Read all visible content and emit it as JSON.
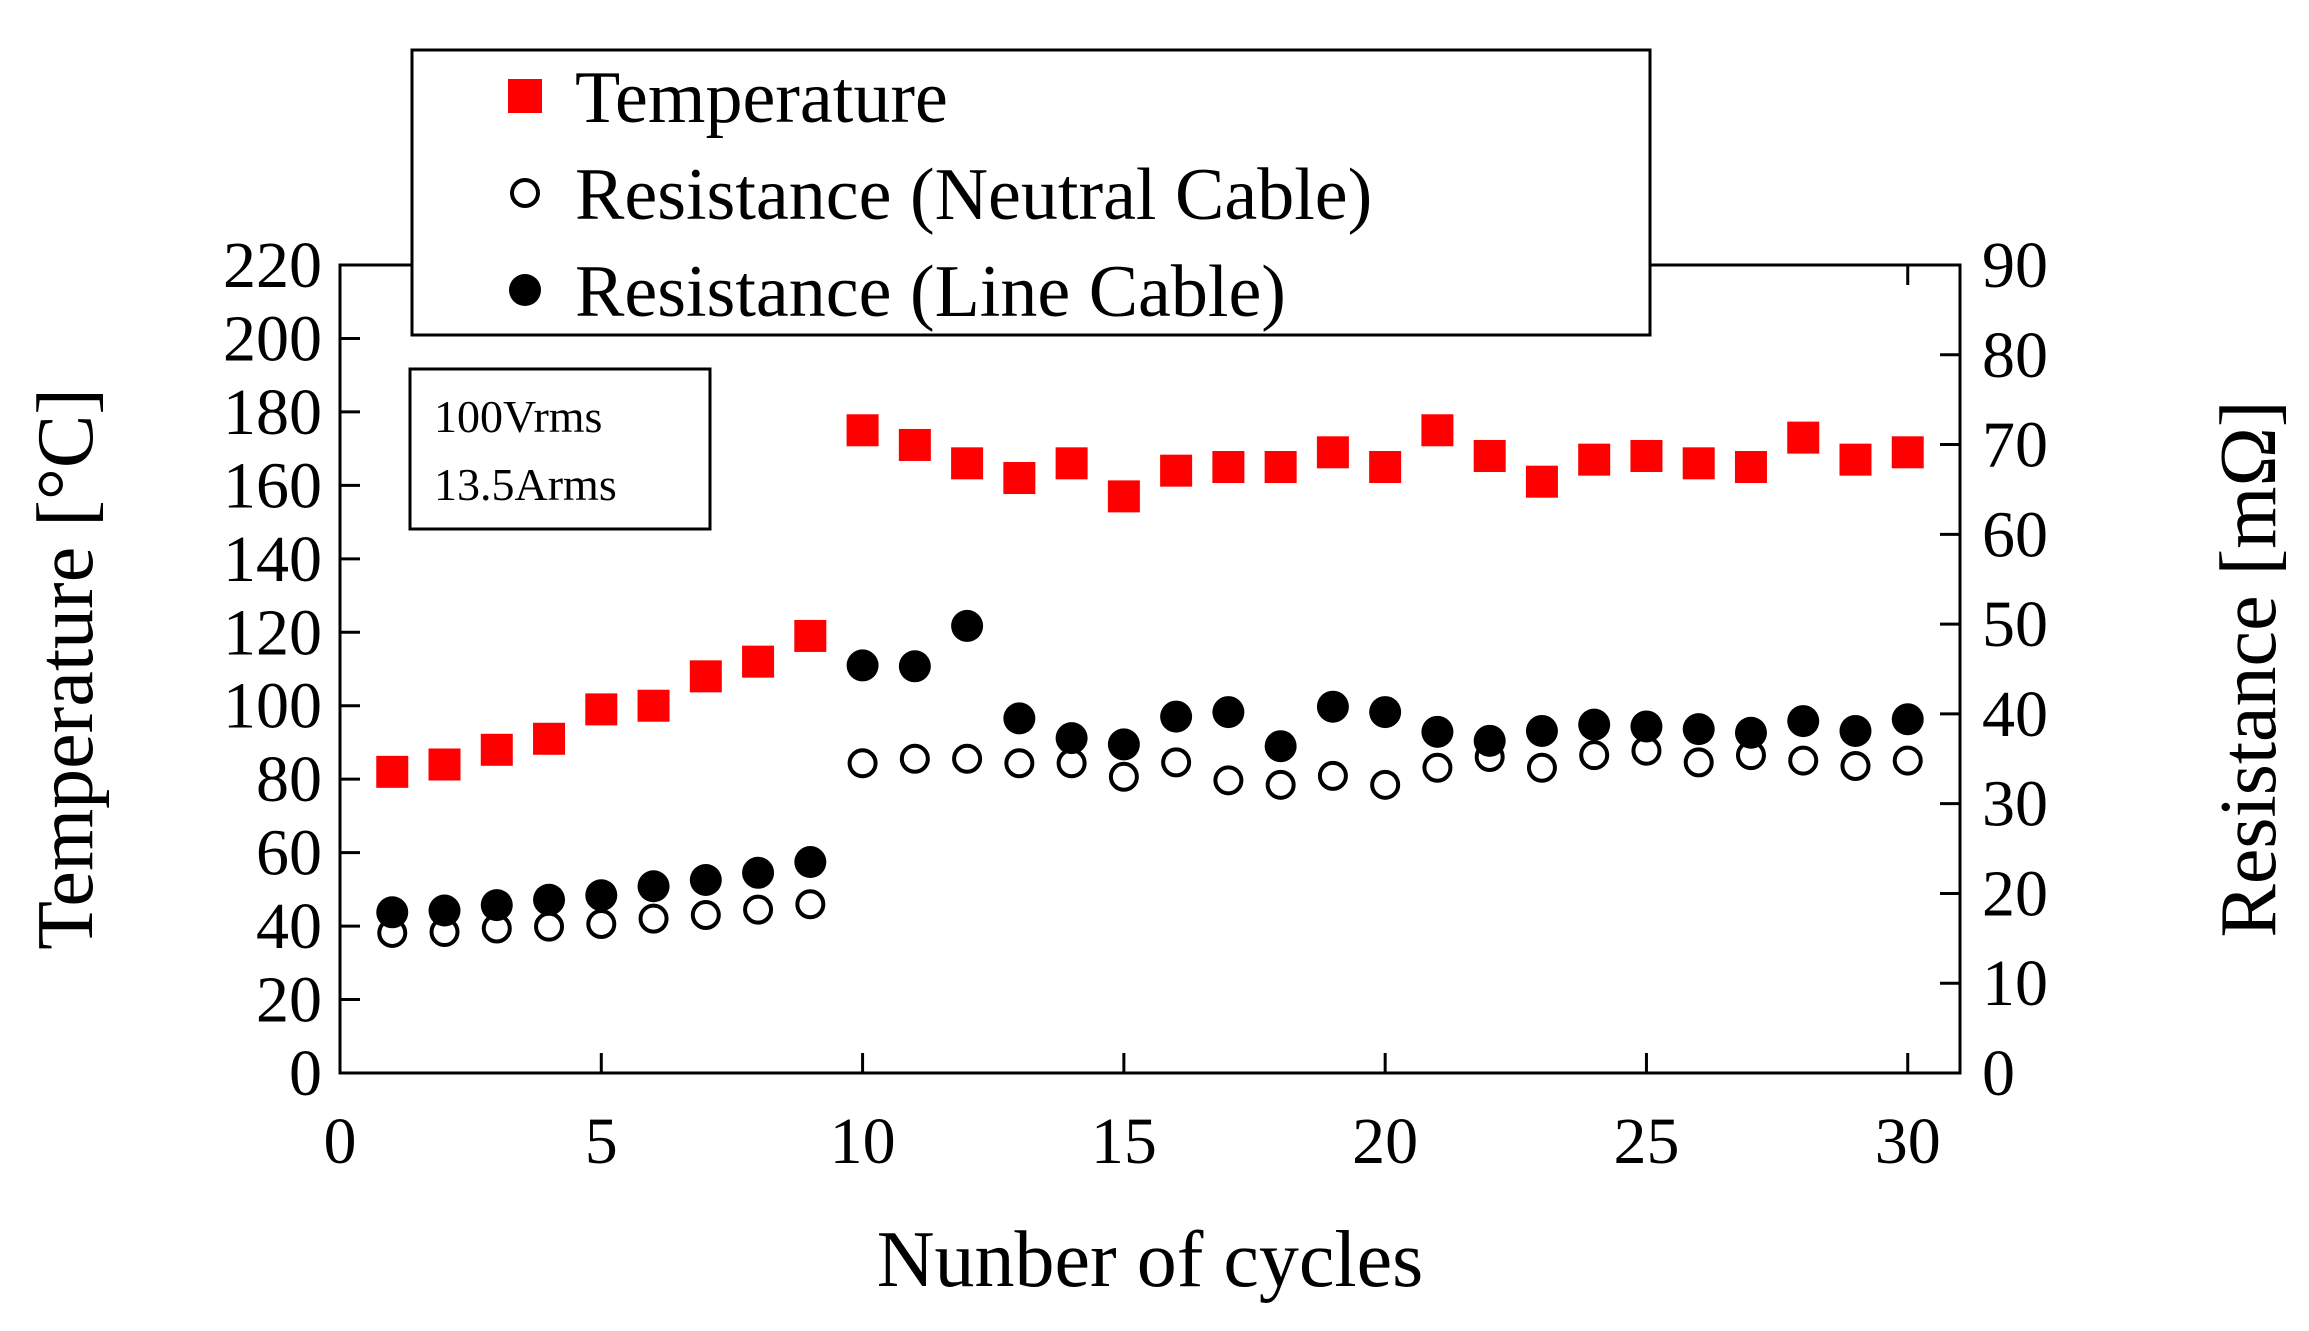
{
  "chart_data": {
    "type": "scatter",
    "xlabel": "Nunber of cycles",
    "ylabel_left": "Temperature  [°C]",
    "ylabel_right": "Resistance  [mΩ]",
    "xlim": [
      0,
      31
    ],
    "ylim_left": [
      0,
      220
    ],
    "ylim_right": [
      0,
      90
    ],
    "x_ticks": [
      0,
      5,
      10,
      15,
      20,
      25,
      30
    ],
    "y_ticks_left": [
      0,
      20,
      40,
      60,
      80,
      100,
      120,
      140,
      160,
      180,
      200,
      220
    ],
    "y_ticks_right": [
      0,
      10,
      20,
      30,
      40,
      50,
      60,
      70,
      80,
      90
    ],
    "grid": false,
    "legend_placement": "top-center",
    "annotation": [
      "100Vrms",
      "13.5Arms"
    ],
    "colors": {
      "temperature": "#ff0000",
      "line_cable": "#000000",
      "neutral_cable": "#000000"
    },
    "series": [
      {
        "name": "Temperature",
        "axis": "left",
        "marker": "square",
        "color": "#ff0000",
        "x": [
          1,
          2,
          3,
          4,
          5,
          6,
          7,
          8,
          9,
          10,
          11,
          12,
          13,
          14,
          15,
          16,
          17,
          18,
          19,
          20,
          21,
          22,
          23,
          24,
          25,
          26,
          27,
          28,
          29,
          30
        ],
        "values": [
          82,
          84,
          88,
          91,
          99,
          100,
          108,
          112,
          119,
          175,
          171,
          166,
          162,
          166,
          157,
          164,
          165,
          165,
          169,
          165,
          175,
          168,
          161,
          167,
          168,
          166,
          165,
          173,
          167,
          169
        ]
      },
      {
        "name": "Resistance (Neutral Cable)",
        "axis": "right",
        "marker": "open-circle",
        "color": "#000000",
        "x": [
          1,
          2,
          3,
          4,
          5,
          6,
          7,
          8,
          9,
          10,
          11,
          12,
          13,
          14,
          15,
          16,
          17,
          18,
          19,
          20,
          21,
          22,
          23,
          24,
          25,
          26,
          27,
          28,
          29,
          30
        ],
        "values": [
          15.6,
          15.7,
          16.1,
          16.3,
          16.6,
          17.2,
          17.6,
          18.2,
          18.8,
          34.5,
          35.0,
          35.0,
          34.5,
          34.5,
          33.0,
          34.6,
          32.6,
          32.1,
          33.1,
          32.1,
          34.0,
          35.2,
          34.0,
          35.4,
          35.9,
          34.6,
          35.4,
          34.8,
          34.2,
          34.8
        ]
      },
      {
        "name": "Resistance (Line Cable)",
        "axis": "right",
        "marker": "filled-circle",
        "color": "#000000",
        "x": [
          1,
          2,
          3,
          4,
          5,
          6,
          7,
          8,
          9,
          10,
          11,
          12,
          13,
          14,
          15,
          16,
          17,
          18,
          19,
          20,
          21,
          22,
          23,
          24,
          25,
          26,
          27,
          28,
          29,
          30
        ],
        "values": [
          17.9,
          18.1,
          18.7,
          19.3,
          19.8,
          20.8,
          21.5,
          22.3,
          23.5,
          45.4,
          45.3,
          49.8,
          39.5,
          37.3,
          36.6,
          39.7,
          40.2,
          36.4,
          40.8,
          40.2,
          38.0,
          37.0,
          38.1,
          38.8,
          38.6,
          38.3,
          37.9,
          39.2,
          38.1,
          39.4
        ]
      }
    ]
  }
}
